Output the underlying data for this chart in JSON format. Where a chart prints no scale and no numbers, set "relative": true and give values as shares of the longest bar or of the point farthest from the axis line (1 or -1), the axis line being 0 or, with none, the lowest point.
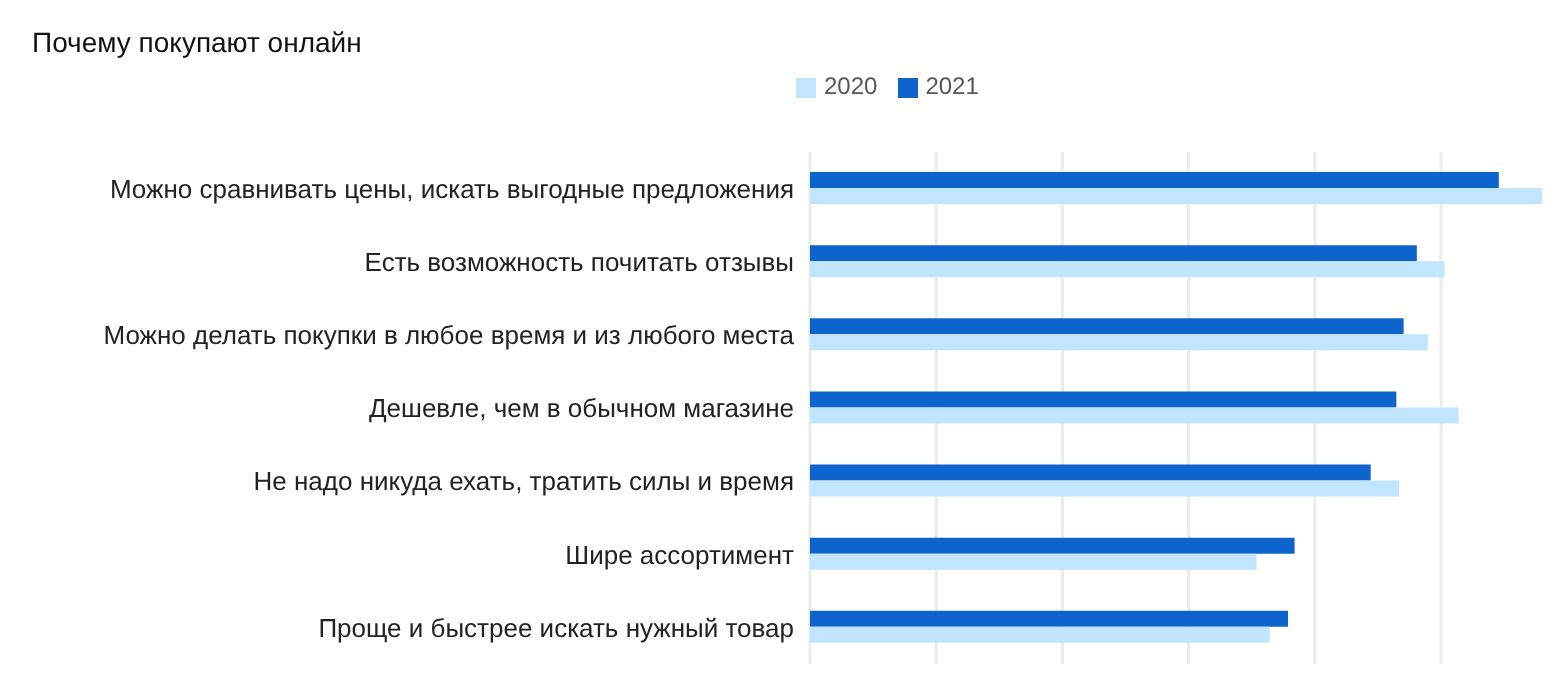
{
  "chart_data": {
    "type": "bar",
    "orientation": "horizontal",
    "relative": true,
    "title": "Почему покупают онлайн",
    "categories": [
      "Можно сравнивать цены, искать выгодные предложения",
      "Есть возможность почитать отзывы",
      "Можно делать покупки в любое время и из любого места",
      "Дешевле, чем в обычном магазине",
      "Не надо никуда ехать, тратить силы и время",
      "Шире ассортимент",
      "Проще и быстрее искать нужный товар"
    ],
    "series": [
      {
        "name": "2021",
        "color": "#0c64cc",
        "values": [
          0.941,
          0.829,
          0.811,
          0.801,
          0.766,
          0.662,
          0.653
        ]
      },
      {
        "name": "2020",
        "color": "#c2e5fe",
        "values": [
          1,
          0.867,
          0.844,
          0.886,
          0.805,
          0.61,
          0.628
        ]
      }
    ],
    "grid": "x",
    "legend": "top left"
  }
}
